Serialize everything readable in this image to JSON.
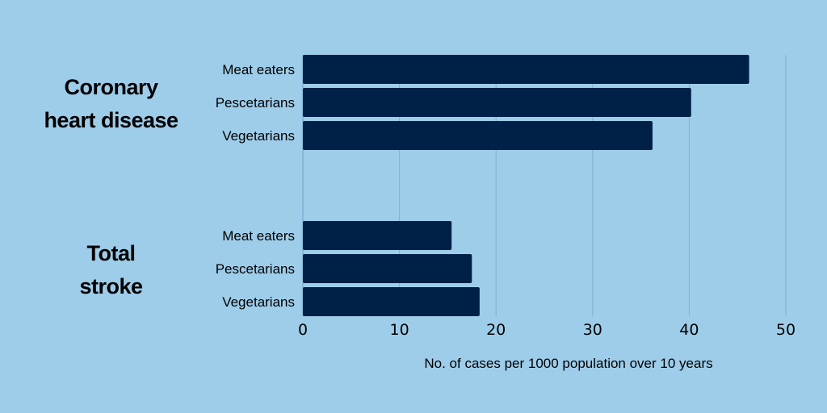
{
  "chart_data": {
    "type": "bar",
    "orientation": "horizontal",
    "groups": [
      {
        "label_lines": [
          "Coronary",
          "heart disease"
        ],
        "bars": [
          {
            "category": "Meat eaters",
            "value": 46.2
          },
          {
            "category": "Pescetarians",
            "value": 40.2
          },
          {
            "category": "Vegetarians",
            "value": 36.2
          }
        ]
      },
      {
        "label_lines": [
          "Total",
          "stroke"
        ],
        "bars": [
          {
            "category": "Meat eaters",
            "value": 15.4
          },
          {
            "category": "Pescetarians",
            "value": 17.5
          },
          {
            "category": "Vegetarians",
            "value": 18.3
          }
        ]
      }
    ],
    "xlabel": "No. of cases per 1000 population over 10 years",
    "xlim": [
      0,
      50
    ],
    "xticks": [
      "0",
      "10",
      "20",
      "30",
      "40",
      "50"
    ],
    "grid": "vertical"
  },
  "colors": {
    "background": "#9ecdea",
    "bar": "#002147",
    "grid": "#7fb1d2",
    "text": "#000000"
  }
}
